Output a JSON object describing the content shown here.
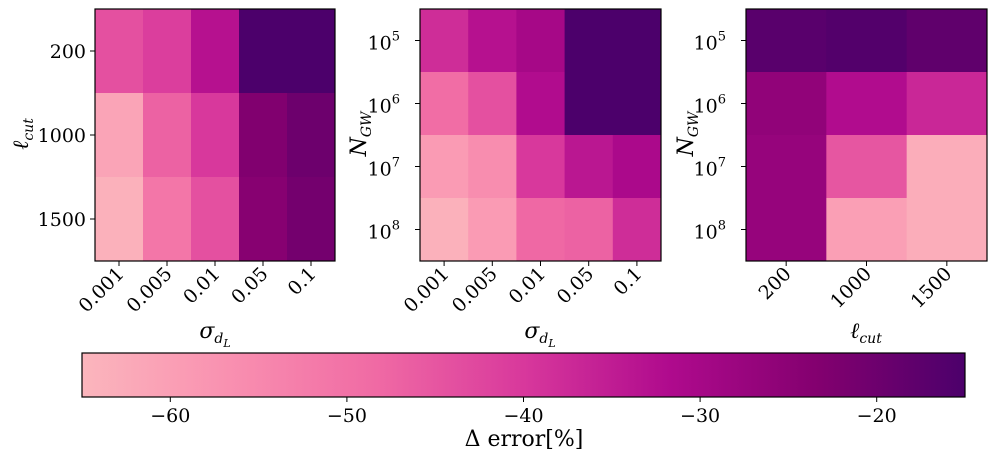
{
  "colormap": {
    "stops": [
      "#fbb6bd",
      "#f990b0",
      "#f06aa4",
      "#d8389c",
      "#af0a8d",
      "#83006f",
      "#4c006b"
    ]
  },
  "chart_data": [
    {
      "type": "heatmap",
      "title": "",
      "xlabel": "σ_dL",
      "ylabel": "ℓ_cut",
      "x_categories": [
        "0.001",
        "0.005",
        "0.01",
        "0.05",
        "0.1"
      ],
      "y_categories": [
        "200",
        "1000",
        "1500"
      ],
      "values": [
        [
          -44,
          -41,
          -33,
          -14,
          -14
        ],
        [
          -61,
          -47,
          -40,
          -23,
          -20
        ],
        [
          -64,
          -51,
          -44,
          -24,
          -21
        ]
      ]
    },
    {
      "type": "heatmap",
      "title": "",
      "xlabel": "σ_dL",
      "ylabel": "N_GW",
      "y_scale": "log",
      "x_categories": [
        "0.001",
        "0.005",
        "0.01",
        "0.05",
        "0.1"
      ],
      "y_categories": [
        "10^5",
        "10^6",
        "10^7",
        "10^8"
      ],
      "y_tick_base": [
        "10",
        "10",
        "10",
        "10"
      ],
      "y_tick_exp": [
        "5",
        "6",
        "7",
        "8"
      ],
      "values": [
        [
          -38,
          -33,
          -30,
          -15,
          -15
        ],
        [
          -49,
          -44,
          -32,
          -15,
          -15
        ],
        [
          -59,
          -56,
          -40,
          -34,
          -31
        ],
        [
          -64,
          -59,
          -48,
          -47,
          -38
        ]
      ]
    },
    {
      "type": "heatmap",
      "title": "",
      "xlabel": "ℓ_cut",
      "ylabel": "N_GW",
      "y_scale": "log",
      "x_categories": [
        "200",
        "1000",
        "1500"
      ],
      "y_categories": [
        "10^5",
        "10^6",
        "10^7",
        "10^8"
      ],
      "y_tick_base": [
        "10",
        "10",
        "10",
        "10"
      ],
      "y_tick_exp": [
        "5",
        "6",
        "7",
        "8"
      ],
      "values": [
        [
          -17,
          -16,
          -18
        ],
        [
          -26,
          -32,
          -37
        ],
        [
          -27,
          -45,
          -63
        ],
        [
          -27,
          -60,
          -63
        ]
      ]
    },
    {
      "type": "colorbar",
      "label": "Δ error[%]",
      "vmin": -65,
      "vmax": -15,
      "ticks": [
        -60,
        -50,
        -40,
        -30,
        -20
      ],
      "tick_labels": [
        "−60",
        "−50",
        "−40",
        "−30",
        "−20"
      ]
    }
  ]
}
